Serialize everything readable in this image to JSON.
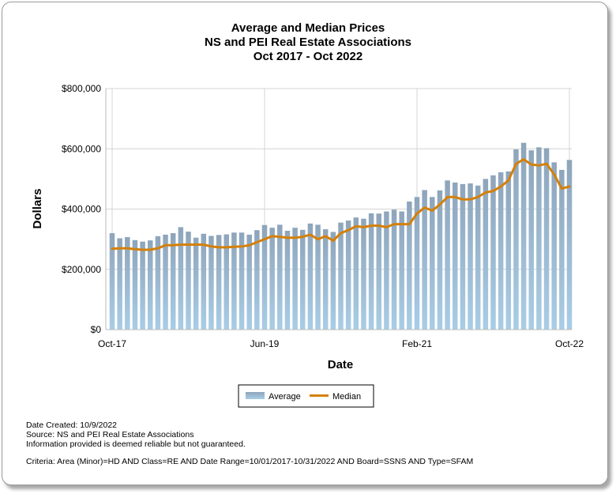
{
  "chart_data": {
    "type": "bar",
    "title_lines": [
      "Average and Median Prices",
      "NS and PEI Real Estate Associations",
      "Oct 2017 - Oct 2022"
    ],
    "xlabel": "Date",
    "ylabel": "Dollars",
    "ylim": [
      0,
      800000
    ],
    "yticks": [
      "$800,000",
      "$600,000",
      "$400,000",
      "$200,000",
      "$0"
    ],
    "ytick_values": [
      800000,
      600000,
      400000,
      200000,
      0
    ],
    "xticks": [
      "Oct-17",
      "Jun-19",
      "Feb-21",
      "Oct-22"
    ],
    "xtick_indices": [
      0,
      20,
      40,
      60
    ],
    "grid": true,
    "legend_position": "bottom-center",
    "series": [
      {
        "name": "Average",
        "type": "bar",
        "color": "#8fa9c2",
        "values": [
          320000,
          303000,
          307000,
          297000,
          292000,
          296000,
          310000,
          315000,
          320000,
          340000,
          325000,
          305000,
          318000,
          311000,
          314000,
          316000,
          322000,
          322000,
          315000,
          330000,
          347000,
          338000,
          348000,
          328000,
          338000,
          331000,
          352000,
          348000,
          333000,
          324000,
          355000,
          362000,
          372000,
          368000,
          386000,
          385000,
          392000,
          398000,
          392000,
          425000,
          440000,
          463000,
          440000,
          462000,
          495000,
          488000,
          483000,
          485000,
          478000,
          500000,
          512000,
          522000,
          525000,
          598000,
          620000,
          595000,
          605000,
          602000,
          555000,
          530000,
          563000
        ]
      },
      {
        "name": "Median",
        "type": "line",
        "color": "#d4800a",
        "values": [
          268000,
          270000,
          270000,
          267000,
          265000,
          265000,
          270000,
          280000,
          280000,
          282000,
          282000,
          282000,
          282000,
          276000,
          273000,
          273000,
          275000,
          276000,
          280000,
          290000,
          300000,
          310000,
          308000,
          305000,
          305000,
          308000,
          315000,
          300000,
          310000,
          295000,
          320000,
          330000,
          343000,
          340000,
          345000,
          345000,
          340000,
          350000,
          350000,
          350000,
          385000,
          405000,
          395000,
          415000,
          440000,
          440000,
          432000,
          432000,
          440000,
          455000,
          460000,
          475000,
          495000,
          550000,
          565000,
          548000,
          545000,
          550000,
          515000,
          468000,
          475000
        ]
      }
    ]
  },
  "footer": {
    "date_created": "Date Created: 10/9/2022",
    "source": "Source: NS and PEI Real Estate Associations",
    "disclaimer": "Information provided is deemed reliable but not guaranteed.",
    "criteria": "Criteria: Area (Minor)=HD AND Class=RE AND Date Range=10/01/2017-10/31/2022 AND Board=SSNS AND Type=SFAM"
  }
}
